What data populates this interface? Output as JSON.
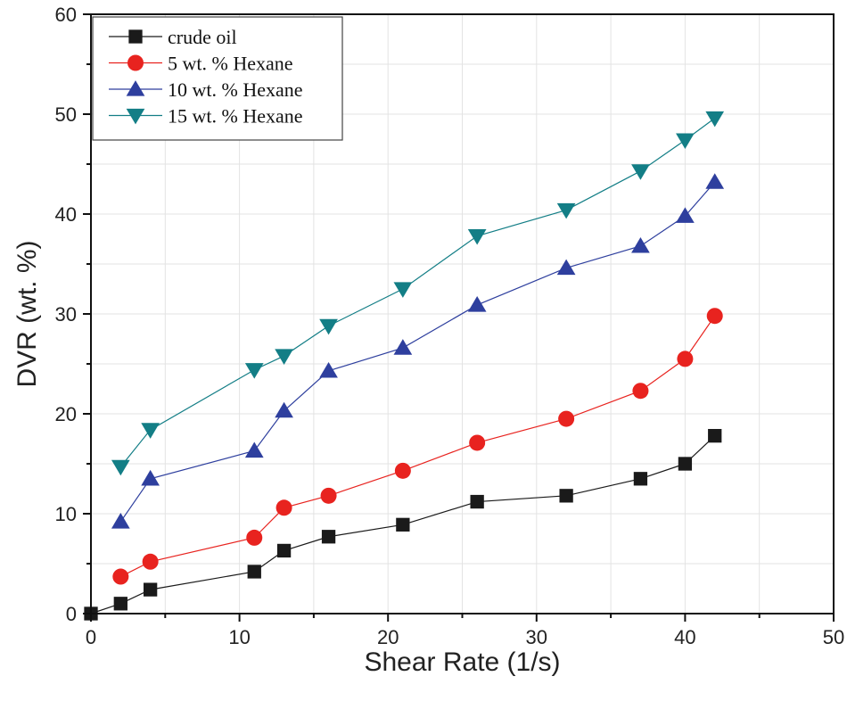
{
  "chart_data": {
    "type": "line",
    "title": "",
    "xlabel": "Shear Rate (1/s)",
    "ylabel": "DVR (wt. %)",
    "xlim": [
      0,
      50
    ],
    "ylim": [
      0,
      60
    ],
    "xticks": [
      0,
      10,
      20,
      30,
      40,
      50
    ],
    "yticks": [
      0,
      10,
      20,
      30,
      40,
      50,
      60
    ],
    "xtick_labels": [
      "0",
      "10",
      "20",
      "30",
      "40",
      "50"
    ],
    "ytick_labels": [
      "0",
      "10",
      "20",
      "30",
      "40",
      "50",
      "60"
    ],
    "grid": true,
    "legend_position": "top-left",
    "series": [
      {
        "name": "crude oil",
        "color": "#1a1a1a",
        "marker": "square",
        "x": [
          0,
          2,
          4,
          11,
          13,
          16,
          21,
          26,
          32,
          37,
          40,
          42
        ],
        "y": [
          0,
          1.0,
          2.4,
          4.2,
          6.3,
          7.7,
          8.9,
          11.2,
          11.8,
          13.5,
          15.0,
          17.8
        ]
      },
      {
        "name": "5 wt. % Hexane",
        "color": "#e8231f",
        "marker": "circle",
        "x": [
          2,
          4,
          11,
          13,
          16,
          21,
          26,
          32,
          37,
          40,
          42
        ],
        "y": [
          3.7,
          5.2,
          7.6,
          10.6,
          11.8,
          14.3,
          17.1,
          19.5,
          22.3,
          25.5,
          29.8
        ]
      },
      {
        "name": "10 wt. % Hexane",
        "color": "#2e3f9e",
        "marker": "triangle-up",
        "x": [
          2,
          4,
          11,
          13,
          16,
          21,
          26,
          32,
          37,
          40,
          42
        ],
        "y": [
          9.2,
          13.5,
          16.3,
          20.3,
          24.3,
          26.6,
          30.9,
          34.6,
          36.8,
          39.8,
          43.2
        ]
      },
      {
        "name": "15 wt. % Hexane",
        "color": "#137e86",
        "marker": "triangle-down",
        "x": [
          2,
          4,
          11,
          13,
          16,
          21,
          26,
          32,
          37,
          40,
          42
        ],
        "y": [
          14.7,
          18.4,
          24.4,
          25.8,
          28.8,
          32.5,
          37.8,
          40.4,
          44.3,
          47.4,
          49.6
        ]
      }
    ]
  }
}
